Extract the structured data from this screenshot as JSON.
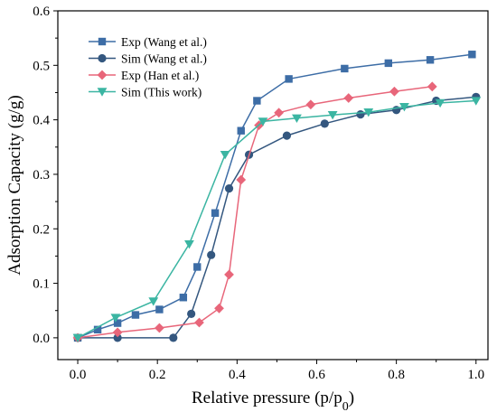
{
  "chart_data": {
    "type": "line",
    "xlabel": "Relative pressure (p/p",
    "xlabel_sub": "0",
    "xlabel_close": ")",
    "ylabel": "Adsorption Capacity (g/g)",
    "xlim": [
      -0.05,
      1.03
    ],
    "ylim": [
      -0.04,
      0.6
    ],
    "xticks": [
      "0.0",
      "0.2",
      "0.4",
      "0.6",
      "0.8",
      "1.0"
    ],
    "yticks": [
      "0.0",
      "0.1",
      "0.2",
      "0.3",
      "0.4",
      "0.5",
      "0.6"
    ],
    "legend_position": "upper-left",
    "grid": false,
    "series": [
      {
        "name": "Exp (Wang et al.)",
        "color": "#3d6da6",
        "marker": "square",
        "x": [
          0.0,
          0.05,
          0.1,
          0.145,
          0.205,
          0.265,
          0.3,
          0.345,
          0.41,
          0.45,
          0.53,
          0.67,
          0.78,
          0.885,
          0.99
        ],
        "y": [
          0.0,
          0.015,
          0.027,
          0.042,
          0.052,
          0.074,
          0.13,
          0.229,
          0.38,
          0.435,
          0.475,
          0.494,
          0.504,
          0.51,
          0.52
        ]
      },
      {
        "name": "Sim (Wang et al.)",
        "color": "#34577f",
        "marker": "circle",
        "x": [
          0.0,
          0.1,
          0.24,
          0.285,
          0.335,
          0.38,
          0.43,
          0.525,
          0.62,
          0.71,
          0.8,
          0.9,
          1.0
        ],
        "y": [
          0.0,
          0.0,
          0.0,
          0.044,
          0.152,
          0.274,
          0.336,
          0.371,
          0.393,
          0.41,
          0.418,
          0.435,
          0.442
        ]
      },
      {
        "name": "Exp (Han et al.)",
        "color": "#e8667a",
        "marker": "diamond",
        "x": [
          0.0,
          0.1,
          0.205,
          0.305,
          0.355,
          0.38,
          0.41,
          0.455,
          0.505,
          0.585,
          0.68,
          0.795,
          0.89
        ],
        "y": [
          0.0,
          0.01,
          0.018,
          0.028,
          0.054,
          0.116,
          0.29,
          0.39,
          0.413,
          0.428,
          0.44,
          0.452,
          0.461
        ]
      },
      {
        "name": "Sim (This work)",
        "color": "#3bb5a2",
        "marker": "triangle-down",
        "x": [
          0.0,
          0.095,
          0.19,
          0.28,
          0.37,
          0.465,
          0.55,
          0.64,
          0.73,
          0.82,
          0.91,
          1.0
        ],
        "y": [
          0.0,
          0.037,
          0.067,
          0.172,
          0.336,
          0.397,
          0.403,
          0.409,
          0.414,
          0.424,
          0.431,
          0.435
        ]
      }
    ]
  }
}
